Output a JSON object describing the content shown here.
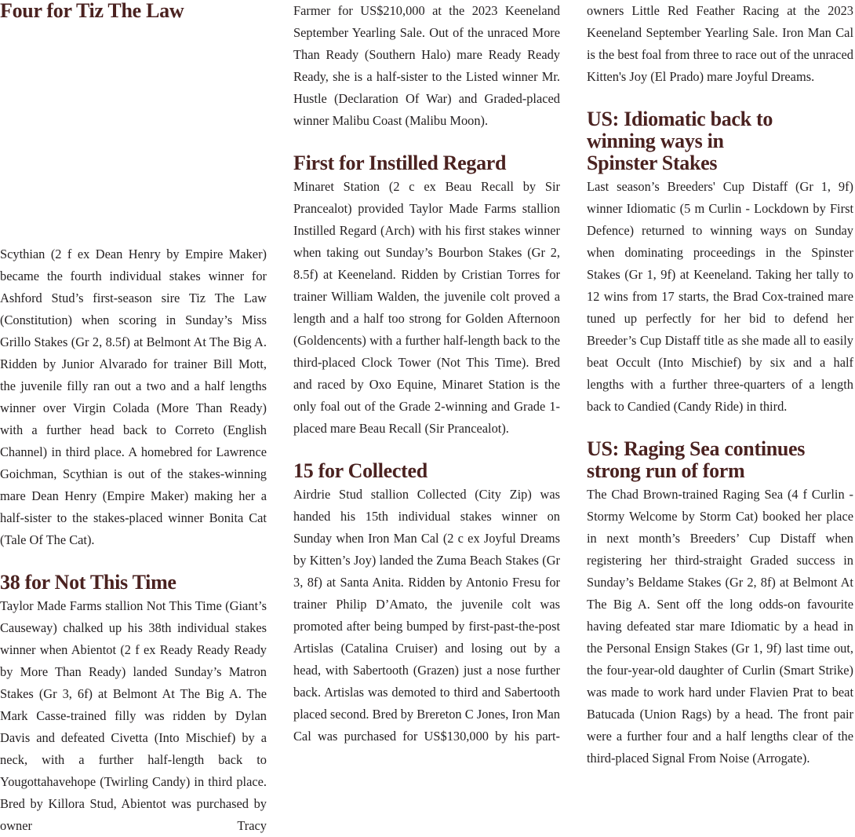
{
  "colors": {
    "heading": "#4a2220",
    "body": "#231f20"
  },
  "articles": [
    {
      "heading": "Four for Tiz The Law",
      "body": "Scythian (2 f ex Dean Henry by Empire Maker) became the fourth individual stakes winner for Ashford Stud’s first-season sire Tiz The Law (Constitution) when scoring in Sunday’s Miss Grillo Stakes (Gr 2, 8.5f) at Belmont At The Big A. Ridden by Junior Alvarado for trainer Bill Mott, the juvenile filly ran out a two and a half lengths winner over Virgin Colada (More Than Ready) with a further head back to Correto (English Channel) in third place. A homebred for Lawrence Goichman, Scythian is out of the stakes-winning mare Dean Henry (Empire Maker) making her a half-sister to the stakes-placed winner Bonita Cat (Tale Of The Cat)."
    },
    {
      "heading": "38 for Not This Time",
      "body": "Taylor Made Farms stallion Not This Time (Giant’s Causeway) chalked up his 38th individual stakes winner when Abientot (2 f ex Ready Ready Ready by More Than Ready) landed Sunday’s Matron Stakes (Gr 3, 6f) at Belmont At The Big A. The Mark Casse-trained filly was ridden by Dylan Davis and defeated Civetta (Into Mischief) by a neck, with a further half-length back to Yougottahavehope (Twirling Candy) in third place. Bred by Killora Stud, Abientot was purchased by owner Tracy",
      "body_cont": "Farmer for US$210,000 at the 2023 Keeneland September Yearling Sale. Out of the unraced More Than Ready (Southern Halo) mare Ready Ready Ready, she is a half-sister to the Listed winner Mr. Hustle (Declaration Of War) and Graded-placed winner Malibu Coast (Malibu Moon)."
    },
    {
      "heading": "First for Instilled Regard",
      "body": "Minaret Station (2 c ex Beau Recall by Sir Prancealot) provided Taylor Made Farms stallion Instilled Regard (Arch) with his first stakes winner when taking out Sunday’s Bourbon Stakes (Gr 2, 8.5f) at Keeneland. Ridden by Cristian Torres for trainer William Walden, the juvenile colt proved a length and a half too strong for Golden Afternoon (Goldencents) with a further half-length back to the third-placed Clock Tower (Not This Time). Bred and raced by Oxo Equine, Minaret Station is the only foal out of the Grade 2-winning and Grade 1-placed mare Beau Recall (Sir Prancealot)."
    },
    {
      "heading": "15 for Collected",
      "body": "Airdrie Stud stallion Collected (City Zip) was handed his 15th individual stakes winner on Sunday when Iron Man Cal (2 c ex Joyful Dreams by Kitten’s Joy) landed the Zuma Beach Stakes (Gr 3, 8f) at Santa Anita. Ridden by Antonio Fresu for trainer Philip D’Amato, the juvenile colt was promoted after being bumped by first-past-the-post Artislas (Catalina Cruiser) and losing out by a head, with Sabertooth (Grazen) just a nose further back. Artislas was demoted to third and Sabertooth placed second. Bred by Brereton C Jones, Iron Man Cal was purchased for US$130,000 by his part-",
      "body_cont": "owners Little Red Feather Racing at the 2023 Keeneland September Yearling Sale. Iron Man Cal is the best foal from three to race out of the unraced Kitten's Joy (El Prado) mare Joyful Dreams."
    },
    {
      "heading": "US: Idiomatic back to\nwinning ways in\nSpinster Stakes",
      "body": "Last season’s Breeders' Cup Distaff (Gr 1, 9f) winner Idiomatic (5 m Curlin - Lockdown by First Defence) returned to winning ways on Sunday when dominating proceedings in the Spinster Stakes (Gr 1, 9f) at Keeneland. Taking her tally to 12 wins from 17 starts, the Brad Cox-trained mare tuned up perfectly for her bid to defend her Breeder’s Cup Distaff title as she made all to easily beat Occult (Into Mischief) by six and a half lengths with a further three-quarters of a length back to Candied (Candy Ride) in third."
    },
    {
      "heading": "US: Raging Sea continues\nstrong run of form",
      "body": "The Chad Brown-trained Raging Sea (4 f Curlin - Stormy Welcome by Storm Cat) booked her place in next month’s Breeders’ Cup Distaff when registering her third-straight Graded success in Sunday’s Beldame Stakes (Gr 2, 8f) at Belmont At The Big A. Sent off the long odds-on favourite having defeated star mare Idiomatic by a head in the Personal Ensign Stakes (Gr 1, 9f) last time out, the four-year-old daughter of Curlin (Smart Strike) was made to work hard under Flavien Prat to beat Batucada (Union Rags) by a head. The front pair were a further four and a half lengths clear of the third-placed Signal From Noise (Arrogate)."
    }
  ]
}
